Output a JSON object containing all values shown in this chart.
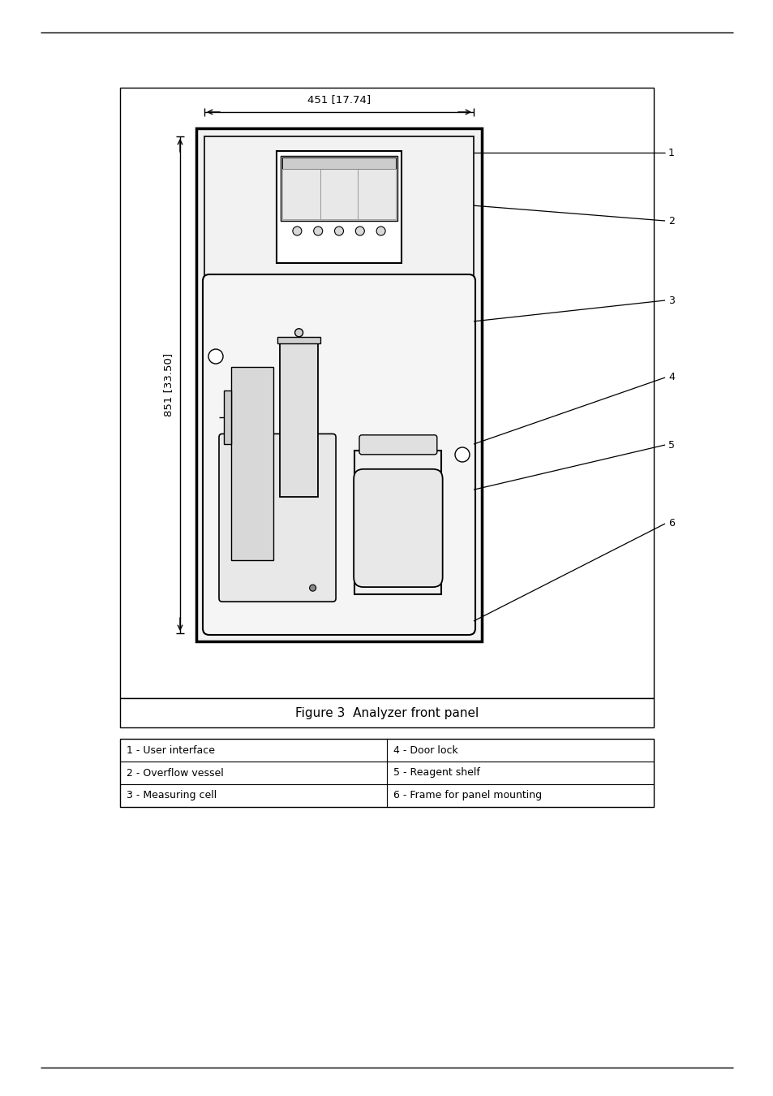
{
  "title": "Figure 3  Analyzer front panel",
  "bg_color": "#ffffff",
  "fig_width": 9.54,
  "fig_height": 13.5,
  "table_data": [
    [
      "1 - User interface",
      "4 - Door lock"
    ],
    [
      "2 - Overflow vessel",
      "5 - Reagent shelf"
    ],
    [
      "3 - Measuring cell",
      "6 - Frame for panel mounting"
    ]
  ],
  "dim_width_text": "451 [17.74]",
  "dim_height_text": "851 [33.50]"
}
